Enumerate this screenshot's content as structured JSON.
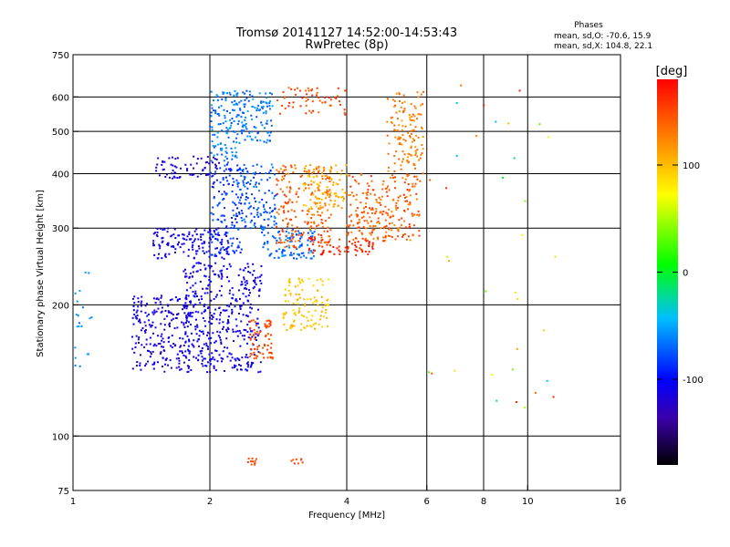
{
  "chart_data": {
    "type": "scatter",
    "title_line1": "Tromsø 20141127 14:52:00-14:53:43",
    "title_line2": "RwPretec (8p)",
    "xlabel": "Frequency [MHz]",
    "ylabel": "Stationary phase Virtual Height [km]",
    "x_scale": "log",
    "y_scale": "log",
    "xlim": [
      1,
      16
    ],
    "ylim": [
      75,
      750
    ],
    "x_ticks": [
      1,
      2,
      4,
      6,
      8,
      10,
      16
    ],
    "x_tick_labels": [
      "1",
      "2",
      "4",
      "6",
      "8",
      "10",
      "16"
    ],
    "y_ticks": [
      75,
      100,
      200,
      300,
      400,
      500,
      600,
      750
    ],
    "y_tick_labels": [
      "75",
      "100",
      "200",
      "300",
      "400",
      "500",
      "600",
      "750"
    ],
    "x_gridlines": [
      2,
      4,
      6,
      8,
      10
    ],
    "y_gridlines": [
      100,
      200,
      300,
      400,
      500,
      600
    ],
    "grid": true,
    "stats": {
      "heading": "Phases",
      "line1": "mean, sd,O: -70.6, 15.9",
      "line2": "mean, sd,X: 104.8, 22.1"
    },
    "colorbar": {
      "label": "[deg]",
      "range": [
        -180,
        180
      ],
      "ticks": [
        100,
        0,
        -100
      ],
      "tick_labels": [
        "100",
        "0",
        "-100"
      ]
    },
    "clusters": [
      {
        "fmin": 1.75,
        "fmax": 2.6,
        "hmin": 140,
        "hmax": 250,
        "phase": -110,
        "spread": 14,
        "n": 420
      },
      {
        "fmin": 1.35,
        "fmax": 1.8,
        "hmin": 140,
        "hmax": 210,
        "phase": -115,
        "spread": 12,
        "n": 220
      },
      {
        "fmin": 1.5,
        "fmax": 2.2,
        "hmin": 255,
        "hmax": 300,
        "phase": -110,
        "spread": 12,
        "n": 140
      },
      {
        "fmin": 1.5,
        "fmax": 2.1,
        "hmin": 390,
        "hmax": 440,
        "phase": -120,
        "spread": 10,
        "n": 70
      },
      {
        "fmin": 2.0,
        "fmax": 2.3,
        "hmin": 420,
        "hmax": 620,
        "phase": -65,
        "spread": 15,
        "n": 110
      },
      {
        "fmin": 2.3,
        "fmax": 2.75,
        "hmin": 470,
        "hmax": 620,
        "phase": -65,
        "spread": 15,
        "n": 110
      },
      {
        "fmin": 2.3,
        "fmax": 2.8,
        "hmin": 300,
        "hmax": 420,
        "phase": -75,
        "spread": 15,
        "n": 130
      },
      {
        "fmin": 2.0,
        "fmax": 2.35,
        "hmin": 260,
        "hmax": 420,
        "phase": -85,
        "spread": 15,
        "n": 130
      },
      {
        "fmin": 2.6,
        "fmax": 3.4,
        "hmin": 255,
        "hmax": 300,
        "phase": -70,
        "spread": 15,
        "n": 110
      },
      {
        "fmin": 2.45,
        "fmax": 2.75,
        "hmin": 150,
        "hmax": 185,
        "phase": 150,
        "spread": 12,
        "n": 70
      },
      {
        "fmin": 2.9,
        "fmax": 3.65,
        "hmin": 175,
        "hmax": 230,
        "phase": 95,
        "spread": 15,
        "n": 110
      },
      {
        "fmin": 2.8,
        "fmax": 3.7,
        "hmin": 270,
        "hmax": 420,
        "phase": 140,
        "spread": 20,
        "n": 210
      },
      {
        "fmin": 3.2,
        "fmax": 4.0,
        "hmin": 330,
        "hmax": 420,
        "phase": 105,
        "spread": 18,
        "n": 90
      },
      {
        "fmin": 4.0,
        "fmax": 5.8,
        "hmin": 280,
        "hmax": 400,
        "phase": 140,
        "spread": 22,
        "n": 240
      },
      {
        "fmin": 4.9,
        "fmax": 5.9,
        "hmin": 400,
        "hmax": 620,
        "phase": 125,
        "spread": 15,
        "n": 130
      },
      {
        "fmin": 3.3,
        "fmax": 4.6,
        "hmin": 260,
        "hmax": 285,
        "phase": 165,
        "spread": 12,
        "n": 70
      },
      {
        "fmin": 2.8,
        "fmax": 4.0,
        "hmin": 545,
        "hmax": 630,
        "phase": 150,
        "spread": 20,
        "n": 60
      },
      {
        "fmin": 2.4,
        "fmax": 2.55,
        "hmin": 86,
        "hmax": 89,
        "phase": 150,
        "spread": 8,
        "n": 10
      },
      {
        "fmin": 3.0,
        "fmax": 3.2,
        "hmin": 86,
        "hmax": 89,
        "phase": 150,
        "spread": 8,
        "n": 8
      },
      {
        "fmin": 1.0,
        "fmax": 1.1,
        "hmin": 140,
        "hmax": 240,
        "phase": -60,
        "spread": 12,
        "n": 20
      },
      {
        "fmin": 6.0,
        "fmax": 11.5,
        "hmin": 110,
        "hmax": 650,
        "phase": 60,
        "spread": 110,
        "n": 35
      }
    ]
  }
}
